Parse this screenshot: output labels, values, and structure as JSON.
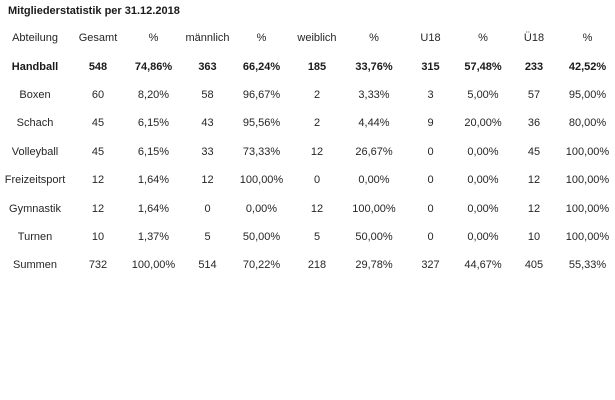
{
  "title": "Mitgliederstatistik per 31.12.2018",
  "colors": {
    "background": "#ffffff",
    "text": "#262626",
    "bold_text": "#1a1a1a"
  },
  "table": {
    "columns": [
      "Abteilung",
      "Gesamt",
      "%",
      "männlich",
      "%",
      "weiblich",
      "%",
      "U18",
      "%",
      "Ü18",
      "%"
    ],
    "rows": [
      {
        "label": "Handball",
        "bold": "all",
        "values": [
          "548",
          "74,86%",
          "363",
          "66,24%",
          "185",
          "33,76%",
          "315",
          "57,48%",
          "233",
          "42,52%"
        ]
      },
      {
        "label": "Boxen",
        "bold": "none",
        "values": [
          "60",
          "8,20%",
          "58",
          "96,67%",
          "2",
          "3,33%",
          "3",
          "5,00%",
          "57",
          "95,00%"
        ]
      },
      {
        "label": "Schach",
        "bold": "none",
        "values": [
          "45",
          "6,15%",
          "43",
          "95,56%",
          "2",
          "4,44%",
          "9",
          "20,00%",
          "36",
          "80,00%"
        ]
      },
      {
        "label": "Volleyball",
        "bold": "none",
        "values": [
          "45",
          "6,15%",
          "33",
          "73,33%",
          "12",
          "26,67%",
          "0",
          "0,00%",
          "45",
          "100,00%"
        ]
      },
      {
        "label": "Freizeitsport",
        "bold": "none",
        "values": [
          "12",
          "1,64%",
          "12",
          "100,00%",
          "0",
          "0,00%",
          "0",
          "0,00%",
          "12",
          "100,00%"
        ]
      },
      {
        "label": "Gymnastik",
        "bold": "none",
        "values": [
          "12",
          "1,64%",
          "0",
          "0,00%",
          "12",
          "100,00%",
          "0",
          "0,00%",
          "12",
          "100,00%"
        ]
      },
      {
        "label": "Turnen",
        "bold": "none",
        "values": [
          "10",
          "1,37%",
          "5",
          "50,00%",
          "5",
          "50,00%",
          "0",
          "0,00%",
          "10",
          "100,00%"
        ]
      },
      {
        "label": "Summen",
        "bold": "counts",
        "values": [
          "732",
          "100,00%",
          "514",
          "70,22%",
          "218",
          "29,78%",
          "327",
          "44,67%",
          "405",
          "55,33%"
        ]
      }
    ]
  }
}
